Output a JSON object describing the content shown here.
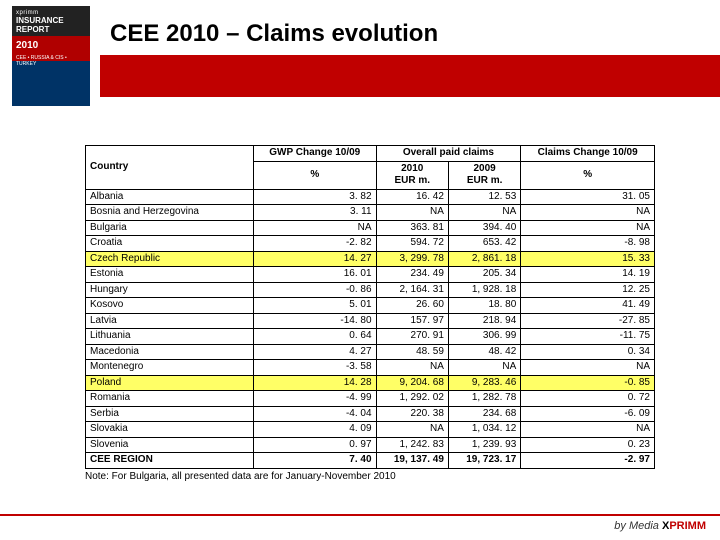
{
  "title": "CEE 2010 – Claims evolution",
  "badge": {
    "top": "xprimm",
    "line1": "INSURANCE REPORT",
    "year": "2010",
    "sub": "CEE • RUSSIA & CIS • TURKEY"
  },
  "table": {
    "header": {
      "country": "Country",
      "gwp": "GWP Change 10/09",
      "gwp_unit": "%",
      "claims_span": "Overall paid claims",
      "c2010": "2010",
      "c2009": "2009",
      "unit_eur": "EUR m.",
      "claims_change": "Claims Change 10/09",
      "claims_change_unit": "%"
    },
    "rows": [
      {
        "c": "Albania",
        "g": "3. 82",
        "p10": "16. 42",
        "p09": "12. 53",
        "cc": "31. 05",
        "hl": false
      },
      {
        "c": "Bosnia and Herzegovina",
        "g": "3. 11",
        "p10": "NA",
        "p09": "NA",
        "cc": "NA",
        "hl": false
      },
      {
        "c": "Bulgaria",
        "g": "NA",
        "p10": "363. 81",
        "p09": "394. 40",
        "cc": "NA",
        "hl": false
      },
      {
        "c": "Croatia",
        "g": "-2. 82",
        "p10": "594. 72",
        "p09": "653. 42",
        "cc": "-8. 98",
        "hl": false
      },
      {
        "c": "Czech Republic",
        "g": "14. 27",
        "p10": "3, 299. 78",
        "p09": "2, 861. 18",
        "cc": "15. 33",
        "hl": true
      },
      {
        "c": "Estonia",
        "g": "16. 01",
        "p10": "234. 49",
        "p09": "205. 34",
        "cc": "14. 19",
        "hl": false
      },
      {
        "c": "Hungary",
        "g": "-0. 86",
        "p10": "2, 164. 31",
        "p09": "1, 928. 18",
        "cc": "12. 25",
        "hl": false
      },
      {
        "c": "Kosovo",
        "g": "5. 01",
        "p10": "26. 60",
        "p09": "18. 80",
        "cc": "41. 49",
        "hl": false
      },
      {
        "c": "Latvia",
        "g": "-14. 80",
        "p10": "157. 97",
        "p09": "218. 94",
        "cc": "-27. 85",
        "hl": false
      },
      {
        "c": "Lithuania",
        "g": "0. 64",
        "p10": "270. 91",
        "p09": "306. 99",
        "cc": "-11. 75",
        "hl": false
      },
      {
        "c": "Macedonia",
        "g": "4. 27",
        "p10": "48. 59",
        "p09": "48. 42",
        "cc": "0. 34",
        "hl": false
      },
      {
        "c": "Montenegro",
        "g": "-3. 58",
        "p10": "NA",
        "p09": "NA",
        "cc": "NA",
        "hl": false
      },
      {
        "c": "Poland",
        "g": "14. 28",
        "p10": "9, 204. 68",
        "p09": "9, 283. 46",
        "cc": "-0. 85",
        "hl": true
      },
      {
        "c": "Romania",
        "g": "-4. 99",
        "p10": "1, 292. 02",
        "p09": "1, 282. 78",
        "cc": "0. 72",
        "hl": false
      },
      {
        "c": "Serbia",
        "g": "-4. 04",
        "p10": "220. 38",
        "p09": "234. 68",
        "cc": "-6. 09",
        "hl": false
      },
      {
        "c": "Slovakia",
        "g": "4. 09",
        "p10": "NA",
        "p09": "1, 034. 12",
        "cc": "NA",
        "hl": false
      },
      {
        "c": "Slovenia",
        "g": "0. 97",
        "p10": "1, 242. 83",
        "p09": "1, 239. 93",
        "cc": "0. 23",
        "hl": false
      },
      {
        "c": "CEE REGION",
        "g": "7. 40",
        "p10": "19, 137. 49",
        "p09": "19, 723. 17",
        "cc": "-2. 97",
        "hl": false,
        "region": true
      }
    ]
  },
  "note": "Note: For Bulgaria, all presented data are for January-November 2010",
  "footer": {
    "by": "by",
    "media": "Media",
    "brand": "XPRIMM"
  }
}
